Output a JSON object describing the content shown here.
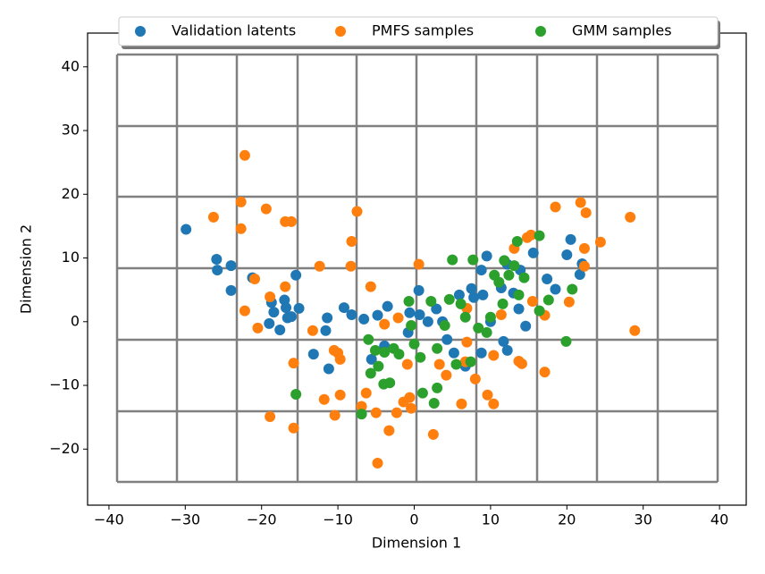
{
  "chart_data": {
    "type": "scatter",
    "xlabel": "Dimension 1",
    "ylabel": "Dimension 2",
    "xlim": [
      -42.8,
      43.5
    ],
    "ylim": [
      -28.8,
      45.3
    ],
    "xticks": [
      {
        "value": -40,
        "label": "−40"
      },
      {
        "value": -30,
        "label": "−30"
      },
      {
        "value": -20,
        "label": "−20"
      },
      {
        "value": -10,
        "label": "−10"
      },
      0,
      10,
      20,
      30,
      40
    ],
    "yticks": [
      {
        "value": -20,
        "label": "−20"
      },
      {
        "value": -10,
        "label": "−10"
      },
      0,
      10,
      20,
      30,
      40
    ],
    "legend": "upper center",
    "series": [
      {
        "name": "Validation latents",
        "color": "#1f77b4",
        "x": [
          -29.9,
          -25.9,
          -25.8,
          -24,
          -24,
          -21.2,
          -18.7,
          -18.4,
          -19,
          -17.6,
          -17,
          -16.8,
          -16.6,
          -15.5,
          -15.1,
          -16.1,
          -13.2,
          -11.4,
          -11.6,
          -11.2,
          -9.2,
          -8.2,
          -6.6,
          -4.8,
          -3.5,
          -5.6,
          -3.9,
          -0.8,
          0.6,
          -0.6,
          0.7,
          1.8,
          2.9,
          3.7,
          4.3,
          5.9,
          7.5,
          7.8,
          9.0,
          9.5,
          8.8,
          10,
          8.8,
          11.4,
          12.2,
          13,
          13.9,
          13.7,
          15.6,
          12.2,
          11.7,
          14.6,
          17.4,
          18.5,
          20,
          20.5,
          21.7,
          22.0,
          6.7,
          5.2
        ],
        "values": [
          14.5,
          9.8,
          8.1,
          8.8,
          4.9,
          6.9,
          3.0,
          1.5,
          -0.3,
          -1.3,
          3.4,
          2.2,
          0.6,
          7.3,
          2.1,
          0.8,
          -5.1,
          0.6,
          -1.4,
          -7.4,
          2.2,
          1.1,
          0.4,
          1.0,
          2.4,
          -5.9,
          -3.8,
          -1.7,
          4.9,
          1.4,
          1.1,
          0,
          2.0,
          0,
          -2.8,
          4.2,
          5.2,
          3.8,
          4.2,
          10.3,
          8.1,
          0,
          -4.9,
          5.3,
          9.0,
          4.5,
          8.1,
          2.0,
          10.8,
          -4.5,
          -3.1,
          -0.7,
          6.7,
          5.1,
          10.5,
          12.9,
          7.4,
          9.1,
          -7.0,
          -4.9
        ]
      },
      {
        "name": "PMFS samples",
        "color": "#ff7f0e",
        "x": [
          -22.2,
          -26.3,
          -22.7,
          -22.7,
          -19.4,
          -20.9,
          -22.2,
          -20.5,
          -18.9,
          -16.9,
          -16.1,
          -16.9,
          -15.8,
          -15.8,
          -18.9,
          -12.4,
          -13.3,
          -11.8,
          -10.5,
          -10,
          -9.7,
          -10.4,
          -9.7,
          -8.3,
          -7.5,
          -8.2,
          -6.9,
          -6.3,
          -5.7,
          -5.0,
          -4.8,
          -3.3,
          -2.3,
          -1.4,
          -0.6,
          -0.4,
          -2.1,
          -3.9,
          -0.9,
          0.6,
          2.5,
          3.3,
          4.2,
          6.2,
          6.7,
          6.9,
          8.0,
          6.9,
          9.6,
          10.4,
          10.4,
          11.4,
          13.1,
          13.7,
          14.1,
          14.8,
          15.3,
          15.5,
          17.1,
          17.1,
          18.5,
          20.3,
          21.8,
          22.5,
          22.3,
          22.3,
          24.4,
          28.3,
          28.9
        ],
        "values": [
          26.1,
          16.4,
          18.8,
          14.6,
          17.7,
          6.7,
          1.7,
          -1.0,
          3.9,
          15.7,
          15.7,
          5.5,
          -6.5,
          -16.7,
          -14.9,
          8.7,
          -1.4,
          -12.2,
          -4.5,
          -4.9,
          -5.9,
          -14.7,
          -11.5,
          8.7,
          17.3,
          12.6,
          -13.3,
          -11.2,
          5.5,
          -14.3,
          -22.2,
          -17.1,
          -14.3,
          -12.6,
          -11.9,
          -13.6,
          0.6,
          -0.4,
          -6.7,
          9.0,
          -17.7,
          -6.7,
          -8.4,
          -12.9,
          -6.3,
          -3.2,
          -9.0,
          2.1,
          -11.5,
          -12.9,
          -5.3,
          1.1,
          11.5,
          -6.2,
          -6.6,
          13.2,
          13.6,
          3.2,
          1.0,
          -7.9,
          18.0,
          3.1,
          18.7,
          17.1,
          11.5,
          8.7,
          12.5,
          16.4,
          -1.4
        ]
      },
      {
        "name": "GMM samples",
        "color": "#2ca02c",
        "x": [
          -15.5,
          -6.9,
          -6,
          -5.7,
          -4.7,
          -4.0,
          -3.2,
          -2.7,
          -2.0,
          -0.7,
          -0.4,
          0,
          0.8,
          1.1,
          2.2,
          3.0,
          2.6,
          3.0,
          4.0,
          4.6,
          5.0,
          5.5,
          6.1,
          6.7,
          7.4,
          7.7,
          8.4,
          9.5,
          10,
          10.5,
          11.1,
          11.6,
          11.8,
          12.4,
          13.1,
          13.5,
          13.7,
          14.4,
          16.4,
          16.4,
          17.6,
          19.9,
          20.7,
          -5.1,
          -3.9
        ],
        "values": [
          -11.4,
          -14.5,
          -2.8,
          -8.1,
          -7.0,
          -9.8,
          -9.6,
          -4.2,
          -5.1,
          3.2,
          -0.6,
          -3.5,
          -5.6,
          -11.2,
          3.2,
          -4.2,
          -12.8,
          -10.4,
          -0.6,
          3.5,
          9.7,
          -6.7,
          2.8,
          0.7,
          -6.3,
          9.7,
          -1.0,
          -1.7,
          0.7,
          7.3,
          6.2,
          2.8,
          9.6,
          7.3,
          8.8,
          12.6,
          4.2,
          6.9,
          13.5,
          1.7,
          3.4,
          -3.1,
          5.1,
          -4.5,
          -4.8
        ]
      }
    ]
  }
}
